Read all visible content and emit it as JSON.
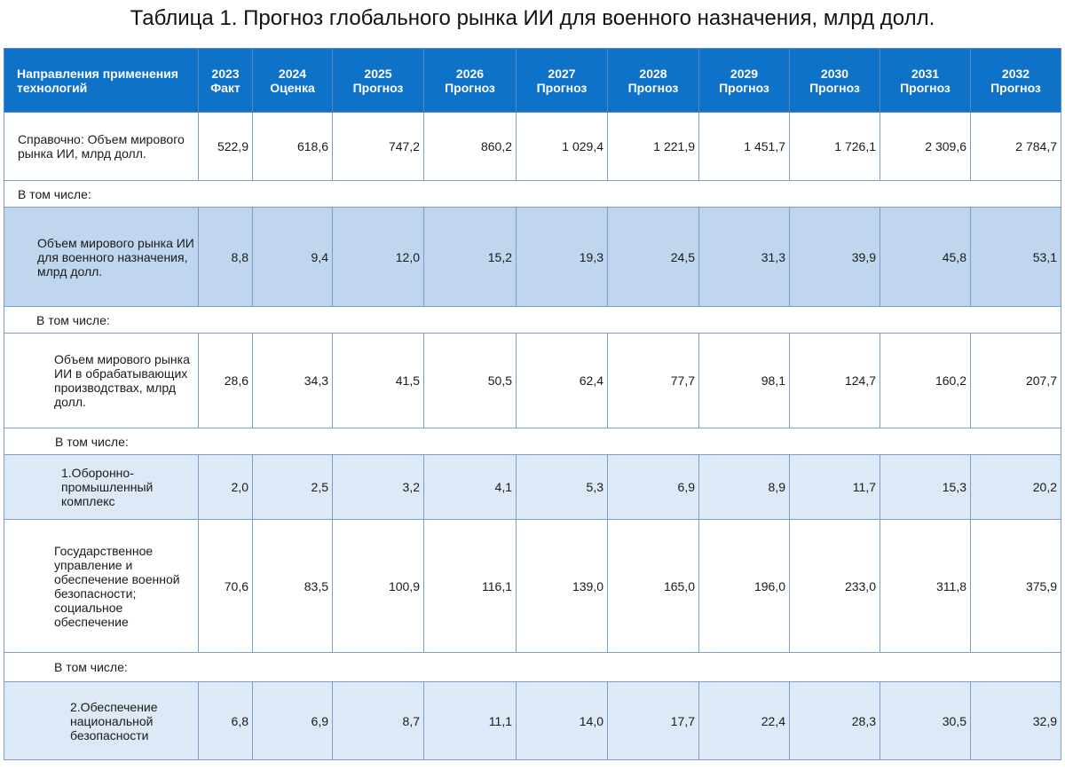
{
  "title": "Таблица 1. Прогноз глобального рынка ИИ для военного назначения, млрд долл.",
  "header": {
    "first_col": "Направления применения технологий",
    "years": [
      {
        "year": "2023",
        "kind": "Факт"
      },
      {
        "year": "2024",
        "kind": "Оценка"
      },
      {
        "year": "2025",
        "kind": "Прогноз"
      },
      {
        "year": "2026",
        "kind": "Прогноз"
      },
      {
        "year": "2027",
        "kind": "Прогноз"
      },
      {
        "year": "2028",
        "kind": "Прогноз"
      },
      {
        "year": "2029",
        "kind": "Прогноз"
      },
      {
        "year": "2030",
        "kind": "Прогноз"
      },
      {
        "year": "2031",
        "kind": "Прогноз"
      },
      {
        "year": "2032",
        "kind": "Прогноз"
      }
    ]
  },
  "rows": {
    "global": {
      "label": "Справочно: Объем мирового рынка ИИ, млрд долл.",
      "values": [
        "522,9",
        "618,6",
        "747,2",
        "860,2",
        "1 029,4",
        "1 221,9",
        "1 451,7",
        "1 726,1",
        "2 309,6",
        "2 784,7"
      ]
    },
    "sub1": "В том числе:",
    "military": {
      "label": "Объем мирового рынка ИИ для военного назначения, млрд долл.",
      "values": [
        "8,8",
        "9,4",
        "12,0",
        "15,2",
        "19,3",
        "24,5",
        "31,3",
        "39,9",
        "45,8",
        "53,1"
      ]
    },
    "sub2": "В том числе:",
    "manufacturing": {
      "label": "Объем мирового рынка ИИ в обрабатывающих производствах, млрд долл.",
      "values": [
        "28,6",
        "34,3",
        "41,5",
        "50,5",
        "62,4",
        "77,7",
        "98,1",
        "124,7",
        "160,2",
        "207,7"
      ]
    },
    "sub3": "В том числе:",
    "defense_industry": {
      "label": "1.Оборонно-промышленный комплекс",
      "values": [
        "2,0",
        "2,5",
        "3,2",
        "4,1",
        "5,3",
        "6,9",
        "8,9",
        "11,7",
        "15,3",
        "20,2"
      ]
    },
    "government": {
      "label": "Государственное управление и обеспечение военной безопасности; социальное обеспечение",
      "values": [
        "70,6",
        "83,5",
        "100,9",
        "116,1",
        "139,0",
        "165,0",
        "196,0",
        "233,0",
        "311,8",
        "375,9"
      ]
    },
    "sub4": "В том числе:",
    "national_security": {
      "label": "2.Обеспечение национальной безопасности",
      "values": [
        "6,8",
        "6,9",
        "8,7",
        "11,1",
        "14,0",
        "17,7",
        "22,4",
        "28,3",
        "30,5",
        "32,9"
      ]
    }
  }
}
